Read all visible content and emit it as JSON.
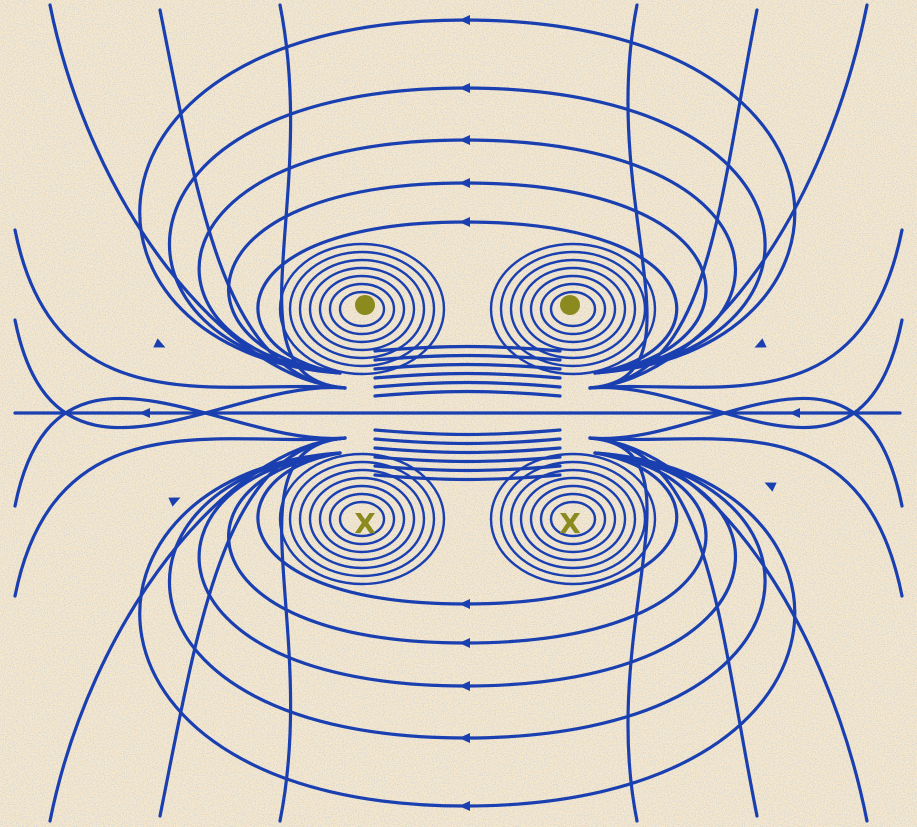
{
  "figure": {
    "background_color": "#f7e8cc",
    "grain_color": "#b9b7ae",
    "field_line_color": "#1a3fb0",
    "marker_color": "#8a8a1e"
  },
  "conductors": [
    {
      "symbol": "dot-out-of-page",
      "label": ""
    },
    {
      "symbol": "dot-out-of-page",
      "label": ""
    },
    {
      "symbol": "cross-into-page",
      "label": "X"
    },
    {
      "symbol": "cross-into-page",
      "label": "X"
    }
  ]
}
